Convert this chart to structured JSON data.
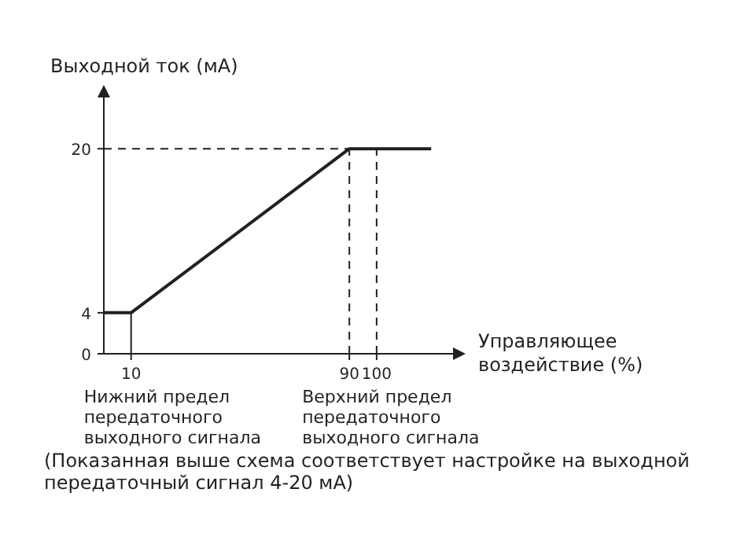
{
  "chart_data": {
    "type": "line",
    "ylabel": "Выходной ток (мА)",
    "xlabel": "Управляющее воздействие (%)",
    "x": [
      0,
      10,
      90,
      120
    ],
    "series": [
      {
        "color": "#231f20",
        "values": [
          4,
          4,
          20,
          20
        ]
      }
    ],
    "xlim": [
      0,
      128
    ],
    "xticks": [
      10,
      90,
      100
    ],
    "ylim": [
      0,
      25
    ],
    "yticks": [
      0,
      4,
      20
    ],
    "ref_lines": [
      {
        "axis": "y",
        "value": 20,
        "line_style": "dashed",
        "color": "#231f20"
      },
      {
        "axis": "x",
        "value": 10,
        "line_style": "solid",
        "color": "#231f20"
      },
      {
        "axis": "x",
        "value": 90,
        "line_style": "dashed",
        "color": "#231f20"
      },
      {
        "axis": "x",
        "value": 100,
        "line_style": "dashed",
        "color": "#231f20"
      }
    ],
    "annotations": [
      {
        "text": "Нижний предел передаточного выходного сигнала",
        "x": 10,
        "y": 0
      },
      {
        "text": "Верхний предел передаточного выходного сигнала",
        "x": 90,
        "y": 0
      },
      "(Показанная выше схема соответствует настройке на выходной передаточный сигнал 4-20 мА)"
    ],
    "line_style": "solid",
    "marker": "none"
  }
}
